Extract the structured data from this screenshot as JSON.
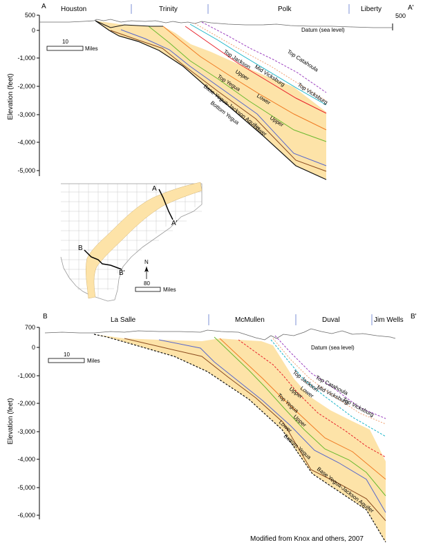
{
  "figure": {
    "credit": "Modified from Knox and others, 2007",
    "section_a": {
      "start_label": "A",
      "end_label": "A'",
      "counties": [
        "Houston",
        "Trinity",
        "Polk",
        "Liberty"
      ],
      "y_axis_title": "Elevation (feet)",
      "y_ticks": [
        "500",
        "0",
        "-1,000",
        "-2,000",
        "-3,000",
        "-4,000",
        "-5,000"
      ],
      "right_top_tick": "500",
      "datum_label": "Datum (sea level)",
      "scale_label": "10",
      "scale_unit": "Miles",
      "formation_labels": [
        "Top Catahoula",
        "Top Jackson",
        "Mid Vicksburg",
        "Top Vicksburg",
        "Upper",
        "Top Yegua",
        "Lower",
        "Upper",
        "Base Yegua-Jackson Aquifer",
        "Bottom Yegua",
        "Lower"
      ]
    },
    "section_b": {
      "start_label": "B",
      "end_label": "B'",
      "counties": [
        "La Salle",
        "McMullen",
        "Duval",
        "Jim Wells"
      ],
      "y_axis_title": "Elevation (feet)",
      "y_ticks": [
        "700",
        "0",
        "-1,000",
        "-2,000",
        "-3,000",
        "-4,000",
        "-5,000",
        "-6,000"
      ],
      "datum_label": "Datum (sea level)",
      "scale_label": "10",
      "scale_unit": "Miles",
      "formation_labels": [
        "Top Catahoula",
        "Top Jackson",
        "Mid Vicksburg",
        "Top Vicksburg",
        "Lower",
        "Upper",
        "Top Yegua",
        "Upper",
        "Lower",
        "Bottom Yegua",
        "Base Yegua-Jackson Aquifer"
      ]
    },
    "map": {
      "label_a": "A",
      "label_a_prime": "A'",
      "label_b": "B",
      "label_b_prime": "B'",
      "north_label": "N",
      "scale_label": "80",
      "scale_unit": "Miles"
    },
    "colors": {
      "aquifer_fill": "#fde3a8",
      "top_catahoula": "#9b3fbf",
      "top_jackson": "#f0a070",
      "mid_vicksburg": "#19b5c8",
      "top_vicksburg": "#e8202a",
      "yegua_upper": "#f07a22",
      "top_yegua": "#6ab92f",
      "yegua_lower": "#5566cc",
      "base": "#111111",
      "bottom_yegua": "#8a4a1e",
      "land_surface": "#666666"
    }
  }
}
